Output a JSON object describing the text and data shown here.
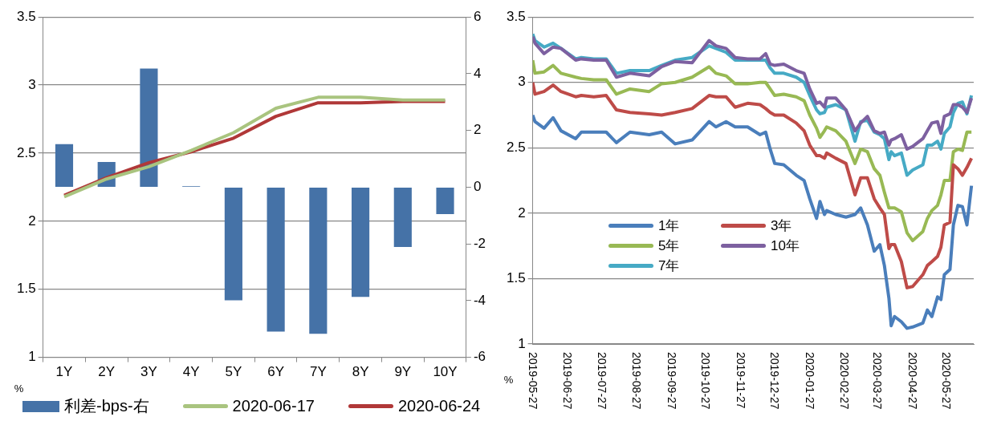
{
  "chart_data": [
    {
      "type": "bar",
      "ylabel": "%",
      "categories": [
        "1Y",
        "2Y",
        "3Y",
        "4Y",
        "5Y",
        "6Y",
        "7Y",
        "8Y",
        "9Y",
        "10Y"
      ],
      "ylim": [
        1,
        3.5
      ],
      "yticks": [
        1,
        1.5,
        2,
        2.5,
        3,
        3.5
      ],
      "y2lim": [
        -6,
        6
      ],
      "y2ticks": [
        -6,
        -4,
        -2,
        0,
        2,
        4,
        6
      ],
      "grid": "y",
      "legend": "bottom",
      "series": [
        {
          "name": "利差-bps-右",
          "type": "bar",
          "axis": "y2",
          "color": "#4572a7",
          "values": [
            1.52,
            0.89,
            4.18,
            0.03,
            -3.99,
            -5.09,
            -5.17,
            -3.87,
            -2.11,
            -0.95
          ]
        },
        {
          "name": "2020-06-17",
          "type": "line",
          "color": "#a9c47f",
          "values": [
            2.18,
            2.31,
            2.4,
            2.52,
            2.65,
            2.83,
            2.91,
            2.91,
            2.89,
            2.89
          ]
        },
        {
          "name": "2020-06-24",
          "type": "line",
          "color": "#b03838",
          "values": [
            2.19,
            2.32,
            2.43,
            2.51,
            2.61,
            2.77,
            2.87,
            2.87,
            2.88,
            2.88
          ]
        }
      ]
    },
    {
      "type": "line",
      "ylabel": "%",
      "xlim": [
        "2019-05-27",
        "2020-06-20"
      ],
      "xticks": [
        "2019-05-27",
        "2019-06-27",
        "2019-07-27",
        "2019-08-27",
        "2019-09-27",
        "2019-10-27",
        "2019-11-27",
        "2019-12-27",
        "2020-01-27",
        "2020-02-27",
        "2020-03-27",
        "2020-04-27",
        "2020-05-27"
      ],
      "ylim": [
        1,
        3.5
      ],
      "yticks": [
        1,
        1.5,
        2,
        2.5,
        3,
        3.5
      ],
      "grid": "y",
      "legend": "left",
      "x": [
        "2019-05-27",
        "2019-05-29",
        "2019-06-06",
        "2019-06-14",
        "2019-06-21",
        "2019-07-04",
        "2019-07-09",
        "2019-07-20",
        "2019-07-31",
        "2019-08-09",
        "2019-08-21",
        "2019-09-07",
        "2019-09-18",
        "2019-09-30",
        "2019-10-15",
        "2019-10-30",
        "2019-11-05",
        "2019-11-14",
        "2019-11-22",
        "2019-12-03",
        "2019-12-14",
        "2019-12-19",
        "2019-12-23",
        "2019-12-27",
        "2020-01-04",
        "2020-01-15",
        "2020-01-22",
        "2020-01-27",
        "2020-02-02",
        "2020-02-05",
        "2020-02-09",
        "2020-02-11",
        "2020-02-19",
        "2020-02-28",
        "2020-03-07",
        "2020-03-12",
        "2020-03-18",
        "2020-03-24",
        "2020-03-29",
        "2020-04-02",
        "2020-04-06",
        "2020-04-08",
        "2020-04-11",
        "2020-04-17",
        "2020-04-22",
        "2020-04-27",
        "2020-05-06",
        "2020-05-10",
        "2020-05-14",
        "2020-05-19",
        "2020-05-22",
        "2020-05-25",
        "2020-05-30",
        "2020-06-02",
        "2020-06-06",
        "2020-06-10",
        "2020-06-14",
        "2020-06-18"
      ],
      "series": [
        {
          "name": "1年",
          "color": "#4a7ebb",
          "values": [
            2.75,
            2.7,
            2.65,
            2.73,
            2.63,
            2.57,
            2.62,
            2.62,
            2.62,
            2.54,
            2.62,
            2.6,
            2.62,
            2.53,
            2.56,
            2.7,
            2.66,
            2.7,
            2.66,
            2.66,
            2.6,
            2.62,
            2.49,
            2.38,
            2.37,
            2.29,
            2.25,
            2.11,
            1.96,
            2.09,
            1.99,
            2.02,
            1.99,
            1.97,
            1.99,
            2.04,
            1.91,
            1.71,
            1.76,
            1.6,
            1.35,
            1.14,
            1.21,
            1.17,
            1.12,
            1.13,
            1.16,
            1.26,
            1.21,
            1.36,
            1.34,
            1.53,
            1.57,
            1.91,
            2.06,
            2.05,
            1.91,
            2.21
          ]
        },
        {
          "name": "3年",
          "color": "#be4b48",
          "values": [
            3.0,
            2.91,
            2.93,
            2.98,
            2.93,
            2.89,
            2.9,
            2.89,
            2.9,
            2.79,
            2.77,
            2.76,
            2.75,
            2.77,
            2.8,
            2.9,
            2.89,
            2.89,
            2.81,
            2.84,
            2.83,
            2.8,
            2.77,
            2.75,
            2.75,
            2.69,
            2.63,
            2.52,
            2.44,
            2.44,
            2.42,
            2.46,
            2.42,
            2.38,
            2.14,
            2.27,
            2.27,
            2.11,
            2.04,
            1.99,
            1.73,
            1.76,
            1.76,
            1.63,
            1.43,
            1.44,
            1.53,
            1.6,
            1.63,
            1.67,
            1.74,
            1.91,
            1.93,
            2.37,
            2.34,
            2.29,
            2.35,
            2.42
          ]
        },
        {
          "name": "5年",
          "color": "#98b954",
          "values": [
            3.17,
            3.07,
            3.08,
            3.13,
            3.07,
            3.04,
            3.03,
            3.02,
            3.02,
            2.91,
            2.95,
            2.93,
            2.99,
            3.0,
            3.04,
            3.12,
            3.07,
            3.05,
            2.99,
            2.99,
            3.0,
            3.0,
            2.95,
            2.9,
            2.91,
            2.89,
            2.86,
            2.75,
            2.65,
            2.58,
            2.63,
            2.66,
            2.63,
            2.55,
            2.38,
            2.49,
            2.47,
            2.34,
            2.29,
            2.16,
            2.04,
            2.04,
            2.04,
            2.01,
            1.85,
            1.79,
            1.86,
            1.96,
            2.02,
            2.06,
            2.14,
            2.25,
            2.25,
            2.47,
            2.49,
            2.48,
            2.62,
            2.62
          ]
        },
        {
          "name": "10年",
          "color": "#7d60a0",
          "values": [
            3.35,
            3.3,
            3.22,
            3.27,
            3.26,
            3.17,
            3.18,
            3.17,
            3.17,
            3.04,
            3.07,
            3.05,
            3.12,
            3.16,
            3.15,
            3.32,
            3.28,
            3.26,
            3.19,
            3.18,
            3.18,
            3.22,
            3.14,
            3.13,
            3.14,
            3.09,
            3.07,
            2.95,
            2.84,
            2.85,
            2.81,
            2.88,
            2.88,
            2.79,
            2.63,
            2.69,
            2.74,
            2.63,
            2.61,
            2.62,
            2.52,
            2.56,
            2.57,
            2.6,
            2.49,
            2.51,
            2.57,
            2.63,
            2.69,
            2.7,
            2.61,
            2.74,
            2.76,
            2.83,
            2.83,
            2.81,
            2.77,
            2.88
          ]
        },
        {
          "name": "7年",
          "color": "#46aac5",
          "values": [
            3.37,
            3.32,
            3.27,
            3.3,
            3.26,
            3.18,
            3.19,
            3.18,
            3.18,
            3.07,
            3.09,
            3.09,
            3.13,
            3.17,
            3.19,
            3.28,
            3.26,
            3.23,
            3.17,
            3.17,
            3.17,
            3.17,
            3.11,
            3.07,
            3.07,
            3.04,
            3.0,
            2.9,
            2.79,
            2.76,
            2.77,
            2.81,
            2.83,
            2.79,
            2.55,
            2.7,
            2.71,
            2.62,
            2.6,
            2.57,
            2.41,
            2.47,
            2.44,
            2.46,
            2.29,
            2.33,
            2.37,
            2.52,
            2.52,
            2.55,
            2.49,
            2.61,
            2.66,
            2.77,
            2.84,
            2.85,
            2.76,
            2.9
          ]
        }
      ]
    }
  ]
}
